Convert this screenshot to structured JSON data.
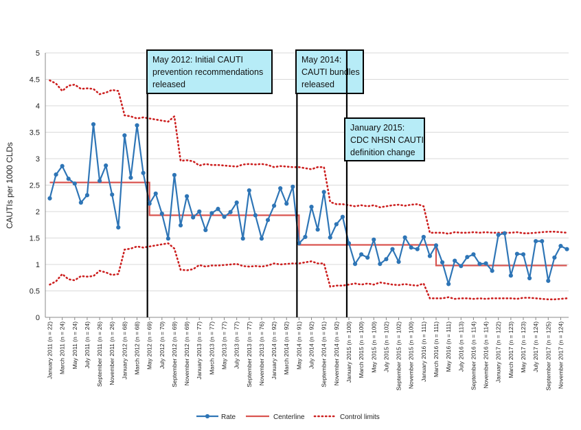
{
  "chart_data": {
    "type": "line",
    "ylabel": "CAUTIs per 1000 CLDs",
    "xlabel": "",
    "ylim": [
      0,
      5
    ],
    "yticks": [
      "0",
      "0.5",
      "1",
      "1.5",
      "2",
      "2.5",
      "3",
      "3.5",
      "4",
      "4.5",
      "5"
    ],
    "grid": "horizontal",
    "legend_position": "bottom",
    "x_tick_labels": [
      "January 2011 (n = 22)",
      "March 2011 (n = 24)",
      "May 2011 (n = 24)",
      "July 2011 (n = 24)",
      "September 2011 (n = 26)",
      "November 2011 (n = 26)",
      "January 2012 (n = 68)",
      "March 2012 (n = 68)",
      "May 2012 (n = 69)",
      "July 2012 (n = 70)",
      "September 2012 (n = 69)",
      "November 2012 (n = 69)",
      "January 2013 (n = 77)",
      "March 2013 (n = 77)",
      "May 2013 (n = 77)",
      "July 2013 (n = 77)",
      "September 2013 (n = 77)",
      "November 2013 (n = 76)",
      "January 2014 (n = 92)",
      "March 2014 (n = 92)",
      "May 2014 (n = 91)",
      "July 2014 (n = 92)",
      "September 2014 (n = 91)",
      "November 2014 (n = 92)",
      "January 2015 (n = 100)",
      "March 2015 (n = 100)",
      "May 2015 (n = 100)",
      "July 2015 (n = 102)",
      "September 2015 (n = 102)",
      "November 2015 (n = 100)",
      "January 2016 (n = 111)",
      "March 2016 (n = 111)",
      "May 2016 (n = 111)",
      "July 2016 (n = 113)",
      "September 2016 (n = 114)",
      "November 2016 (n = 114)",
      "January 2017 (n = 122)",
      "March 2017 (n = 123)",
      "May 2017 (n = 123)",
      "July 2017 (n = 124)",
      "September 2017 (n = 125)",
      "November 2017 (n = 124)"
    ],
    "series": [
      {
        "name": "Rate",
        "color": "#2e75b6",
        "values": [
          2.25,
          2.7,
          2.86,
          2.62,
          2.53,
          2.17,
          2.31,
          3.65,
          2.58,
          2.87,
          2.32,
          1.7,
          3.44,
          2.64,
          3.63,
          2.73,
          2.15,
          2.34,
          1.96,
          1.49,
          2.69,
          1.74,
          2.29,
          1.89,
          2.0,
          1.65,
          1.97,
          2.05,
          1.9,
          1.99,
          2.17,
          1.49,
          2.4,
          1.93,
          1.49,
          1.84,
          2.11,
          2.44,
          2.15,
          2.47,
          1.4,
          1.52,
          2.09,
          1.66,
          2.37,
          1.51,
          1.76,
          1.9,
          1.4,
          1.01,
          1.19,
          1.13,
          1.47,
          1.01,
          1.1,
          1.29,
          1.05,
          1.51,
          1.32,
          1.29,
          1.52,
          1.16,
          1.36,
          1.04,
          0.63,
          1.07,
          0.97,
          1.14,
          1.19,
          1.01,
          1.02,
          0.88,
          1.56,
          1.59,
          0.79,
          1.2,
          1.19,
          0.74,
          1.44,
          1.44,
          0.69,
          1.13,
          1.35,
          1.29
        ]
      },
      {
        "name": "Centerline",
        "color": "#d9534f",
        "segments": [
          {
            "start": 0,
            "end": 16,
            "value": 2.55
          },
          {
            "start": 16,
            "end": 40,
            "value": 1.93
          },
          {
            "start": 40,
            "end": 48,
            "value": 1.37
          },
          {
            "start": 48,
            "end": 62,
            "value": 1.37
          },
          {
            "start": 62,
            "end": 83,
            "value": 0.98
          }
        ]
      },
      {
        "name": "Control limits",
        "color": "#cc1f1f",
        "upper": [
          4.48,
          4.42,
          4.28,
          4.38,
          4.4,
          4.32,
          4.33,
          4.32,
          4.22,
          4.25,
          4.3,
          4.28,
          3.82,
          3.8,
          3.76,
          3.78,
          3.76,
          3.74,
          3.72,
          3.7,
          3.8,
          2.96,
          2.97,
          2.95,
          2.87,
          2.9,
          2.88,
          2.88,
          2.87,
          2.86,
          2.85,
          2.89,
          2.9,
          2.89,
          2.9,
          2.88,
          2.84,
          2.86,
          2.85,
          2.84,
          2.84,
          2.82,
          2.8,
          2.84,
          2.84,
          2.18,
          2.14,
          2.14,
          2.12,
          2.1,
          2.12,
          2.1,
          2.12,
          2.08,
          2.1,
          2.12,
          2.13,
          2.11,
          2.13,
          2.14,
          2.1,
          1.6,
          1.6,
          1.6,
          1.58,
          1.61,
          1.6,
          1.6,
          1.61,
          1.6,
          1.61,
          1.6,
          1.6,
          1.6,
          1.6,
          1.61,
          1.59,
          1.59,
          1.6,
          1.61,
          1.62,
          1.62,
          1.61,
          1.6
        ],
        "lower": [
          0.62,
          0.68,
          0.82,
          0.72,
          0.7,
          0.78,
          0.77,
          0.78,
          0.88,
          0.85,
          0.8,
          0.82,
          1.28,
          1.3,
          1.34,
          1.32,
          1.34,
          1.36,
          1.38,
          1.4,
          1.3,
          0.9,
          0.89,
          0.91,
          0.99,
          0.96,
          0.98,
          0.98,
          0.99,
          1.0,
          1.01,
          0.97,
          0.96,
          0.97,
          0.96,
          0.98,
          1.02,
          1.0,
          1.01,
          1.02,
          1.02,
          1.04,
          1.06,
          1.02,
          1.02,
          0.58,
          0.6,
          0.6,
          0.62,
          0.64,
          0.62,
          0.64,
          0.62,
          0.66,
          0.64,
          0.62,
          0.61,
          0.63,
          0.61,
          0.6,
          0.64,
          0.36,
          0.36,
          0.36,
          0.38,
          0.35,
          0.36,
          0.36,
          0.35,
          0.36,
          0.35,
          0.36,
          0.36,
          0.36,
          0.36,
          0.35,
          0.37,
          0.37,
          0.36,
          0.35,
          0.34,
          0.34,
          0.35,
          0.36
        ]
      }
    ],
    "annotations": [
      {
        "index": 16,
        "lines": [
          "May 2012: Initial CAUTI",
          "prevention recommendations",
          "released"
        ]
      },
      {
        "index": 40,
        "lines": [
          "May 2014:",
          "CAUTI bundles",
          "released"
        ]
      },
      {
        "index": 48,
        "lines": [
          "January 2015:",
          "CDC NHSN CAUTI",
          "definition change"
        ]
      }
    ],
    "annotation_box_color": "#b7ecf7",
    "legend": [
      "Rate",
      "Centerline",
      "Control limits"
    ]
  }
}
